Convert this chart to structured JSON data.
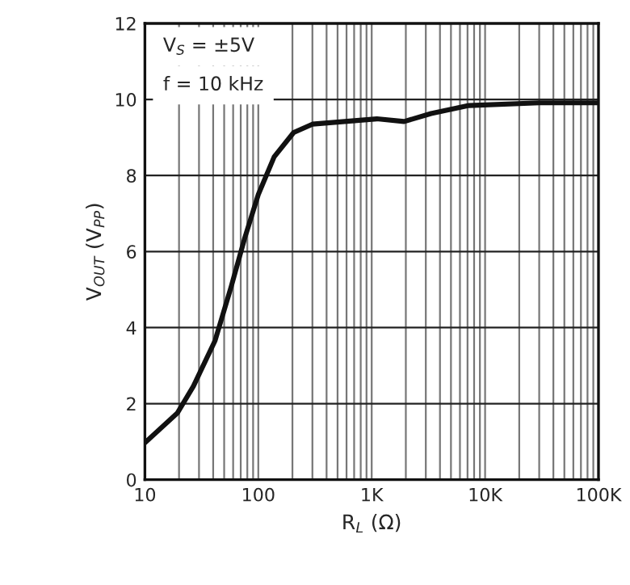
{
  "chart_data": {
    "type": "line",
    "xlabel": "R$_{L}$ (Ω)",
    "ylabel": "V$_{OUT}$ (V$_{PP}$)",
    "annotations": [
      "V$_{S}$ = ±5V",
      "f = 10 kHz"
    ],
    "log": "x",
    "xlim": [
      10,
      100000
    ],
    "ylim": [
      0,
      12
    ],
    "xticks": [
      10,
      100,
      {
        "value": 1000,
        "label": "1K"
      },
      {
        "value": 10000,
        "label": "10K"
      },
      {
        "value": 100000,
        "label": "100K"
      }
    ],
    "yticks": [
      0,
      2,
      4,
      6,
      8,
      10,
      12
    ],
    "grid": true,
    "series": [
      {
        "color": "#111111",
        "x": [
          10,
          19.3,
          26.8,
          41.6,
          57.7,
          76,
          100,
          138,
          205,
          300,
          577,
          1110,
          1930,
          3340,
          7200,
          30000,
          100000
        ],
        "values": [
          0.97,
          1.75,
          2.46,
          3.66,
          5.08,
          6.36,
          7.5,
          8.49,
          9.13,
          9.35,
          9.42,
          9.49,
          9.42,
          9.63,
          9.84,
          9.91,
          9.91
        ]
      }
    ]
  }
}
